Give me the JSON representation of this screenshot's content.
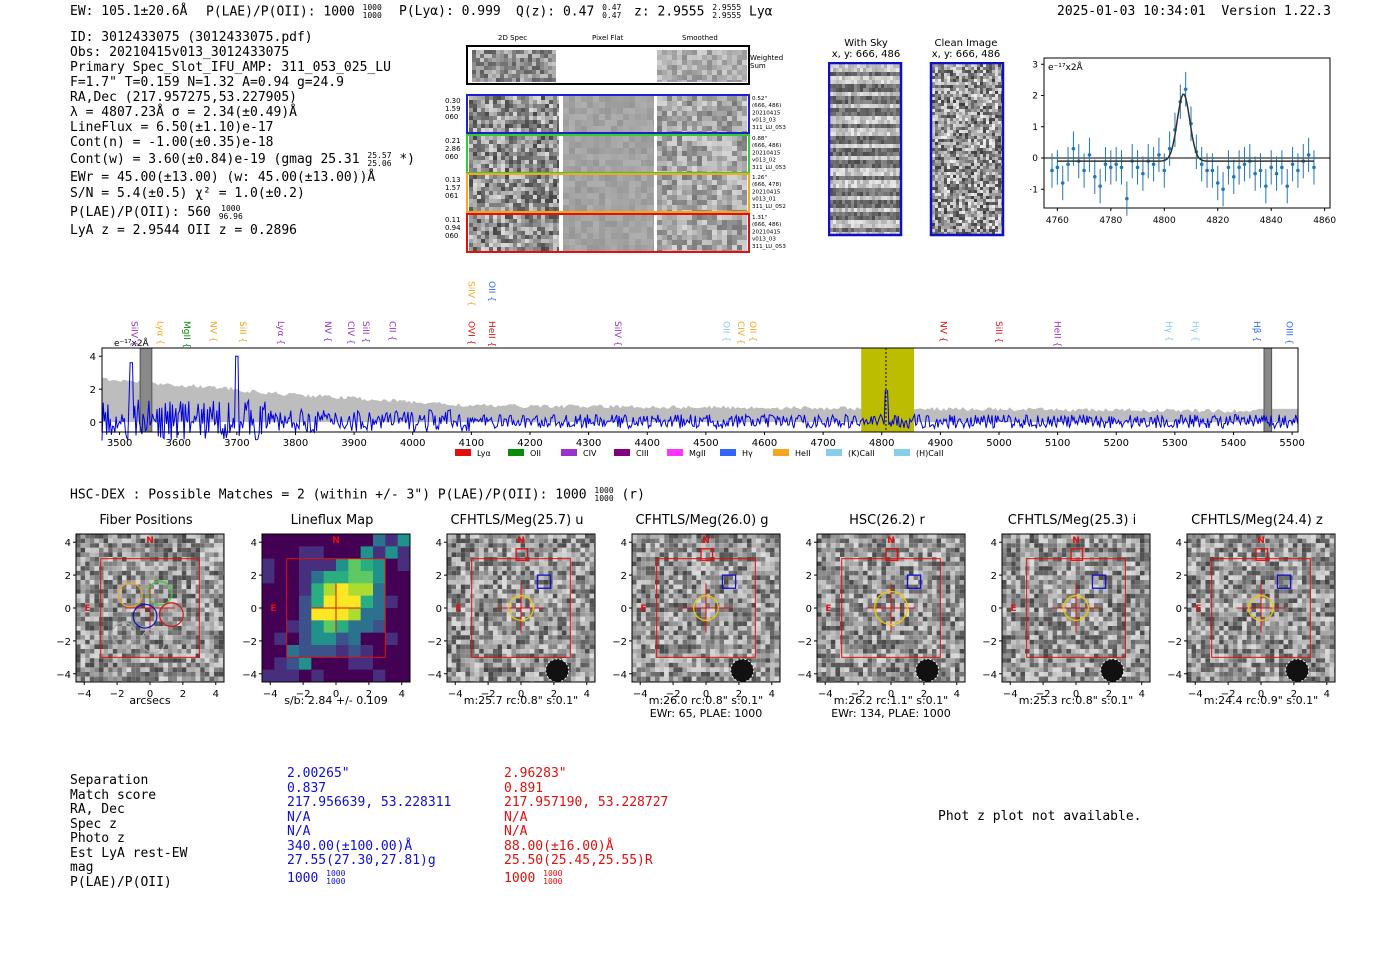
{
  "header": {
    "ew": "EW: 105.1±20.6Å",
    "plae_label": "P(LAE)/P(OII): 1000",
    "plae_up": "1000",
    "plae_lo": "1000",
    "plya": "P(Lyα): 0.999",
    "qz_label": "Q(z): 0.47",
    "qz_up": "0.47",
    "qz_lo": "0.47",
    "z_label": "z: 2.9555",
    "z_up": "2.9555",
    "z_lo": "2.9555",
    "line": "Lyα",
    "datetime": "2025-01-03 10:34:01",
    "version": "Version 1.22.3"
  },
  "info": {
    "id": "ID: 3012433075 (3012433075.pdf)",
    "obs": "Obs: 20210415v013_3012433075",
    "primary": "Primary Spec_Slot_IFU_AMP: 311_053_025_LU",
    "fparams": "F=1.7\"  T=0.159  N=1.32  A=0.94  g=24.9",
    "radec": "RA,Dec (217.957275,53.227905)",
    "lambda": "λ = 4807.23Å  σ = 2.34(±0.49)Å",
    "lineflux": "LineFlux = 6.50(±1.10)e-17",
    "contn": "Cont(n) = -1.00(±0.35)e-18",
    "contw": "Cont(w) = 3.60(±0.84)e-19 (gmag 25.31",
    "contw_up": "25.57",
    "contw_lo": "25.06",
    "contw_end": "*)",
    "ewr": "EWr = 45.00(±13.00) (w: 45.00(±13.00))Å",
    "sn": "S/N = 5.4(±0.5)  χ² = 1.0(±0.2)",
    "plae": "P(LAE)/P(OII): 560",
    "plae_up": "1000",
    "plae_lo": "96.96",
    "lyaz": "LyA z = 2.9544  OII z = 0.2896"
  },
  "spec2d": {
    "col_labels": [
      "2D Spec",
      "Pixel Flat",
      "Smoothed"
    ],
    "weighted_sum": "Weighted Sum",
    "rows": [
      {
        "left": [
          "0.30",
          "1.59",
          "060"
        ],
        "right": [
          "0.52\"",
          "(666, 486)",
          "20210415",
          "v013_03",
          "311_LU_053"
        ],
        "color": "#1f1fd0"
      },
      {
        "left": [
          "0.21",
          "2.86",
          "060"
        ],
        "right": [
          "0.88\"",
          "(666, 486)",
          "20210415",
          "v013_02",
          "311_LU_053"
        ],
        "color": "#33cc33"
      },
      {
        "left": [
          "0.13",
          "1.57",
          "061"
        ],
        "right": [
          "1.26\"",
          "(666, 478)",
          "20210415",
          "v013_01",
          "311_LU_052"
        ],
        "color": "#f5a623"
      },
      {
        "left": [
          "0.11",
          "0.94",
          "060"
        ],
        "right": [
          "1.31\"",
          "(666, 486)",
          "20210415",
          "v013_03",
          "311_LU_053"
        ],
        "color": "#e01010"
      }
    ]
  },
  "skypanels": {
    "with_sky": "With Sky",
    "with_sky_xy": "x, y: 666, 486",
    "clean": "Clean Image",
    "clean_xy": "x, y: 666, 486"
  },
  "zoom_chart": {
    "unit": "e⁻¹⁷x2Å",
    "ytick_labels": [
      "3",
      "2",
      "1",
      "0",
      "−1"
    ],
    "xtick_labels": [
      "4760",
      "4780",
      "4800",
      "4820",
      "4840",
      "4860"
    ]
  },
  "full_spec": {
    "unit": "e⁻¹⁷x2Å",
    "ytick_labels": [
      "4",
      "2",
      "0"
    ],
    "xtick_labels": [
      "3500",
      "3600",
      "3700",
      "3800",
      "3900",
      "4000",
      "4100",
      "4200",
      "4300",
      "4400",
      "4500",
      "4600",
      "4700",
      "4800",
      "4900",
      "5000",
      "5100",
      "5200",
      "5300",
      "5400",
      "5500"
    ],
    "line_labels": [
      {
        "t": "SiIV",
        "c": "#9933cc",
        "x": 3520,
        "row": 0
      },
      {
        "t": "Lyα",
        "c": "#f5a623",
        "x": 3565,
        "row": 0
      },
      {
        "t": "MgII",
        "c": "#0a8a0a",
        "x": 3610,
        "row": 0
      },
      {
        "t": "NV",
        "c": "#f5a623",
        "x": 3655,
        "row": 0
      },
      {
        "t": "SiII",
        "c": "#f5a623",
        "x": 3705,
        "row": 0
      },
      {
        "t": "Lyα",
        "c": "#9933cc",
        "x": 3770,
        "row": 0
      },
      {
        "t": "NV",
        "c": "#9933cc",
        "x": 3850,
        "row": 0
      },
      {
        "t": "CIV",
        "c": "#9933cc",
        "x": 3890,
        "row": 0
      },
      {
        "t": "SiII",
        "c": "#9933cc",
        "x": 3915,
        "row": 0
      },
      {
        "t": "CII",
        "c": "#9933cc",
        "x": 3960,
        "row": 0
      },
      {
        "t": "OVI",
        "c": "#e01010",
        "x": 4095,
        "row": 0
      },
      {
        "t": "SiIV",
        "c": "#f5a623",
        "x": 4095,
        "row": 1
      },
      {
        "t": "HeII",
        "c": "#e01010",
        "x": 4130,
        "row": 0
      },
      {
        "t": "OII",
        "c": "#3366ff",
        "x": 4130,
        "row": 1
      },
      {
        "t": "SiIV",
        "c": "#9933cc",
        "x": 4345,
        "row": 0
      },
      {
        "t": "OII",
        "c": "#87ceeb",
        "x": 4530,
        "row": 0
      },
      {
        "t": "CIV",
        "c": "#f5a623",
        "x": 4555,
        "row": 0
      },
      {
        "t": "OII",
        "c": "#f5a623",
        "x": 4575,
        "row": 0
      },
      {
        "t": "NV",
        "c": "#e01010",
        "x": 4900,
        "row": 0
      },
      {
        "t": "SiII",
        "c": "#e01010",
        "x": 4995,
        "row": 0
      },
      {
        "t": "HeII",
        "c": "#9933cc",
        "x": 5095,
        "row": 0
      },
      {
        "t": "Hγ",
        "c": "#87ceeb",
        "x": 5285,
        "row": 0
      },
      {
        "t": "Hγ",
        "c": "#87ceeb",
        "x": 5330,
        "row": 0
      },
      {
        "t": "Hβ",
        "c": "#3366ff",
        "x": 5435,
        "row": 0
      },
      {
        "t": "OIII",
        "c": "#3366ff",
        "x": 5490,
        "row": 0
      }
    ],
    "legend": [
      {
        "t": "Lyα",
        "c": "#e01010"
      },
      {
        "t": "OII",
        "c": "#0a8a0a"
      },
      {
        "t": "CIV",
        "c": "#9933cc"
      },
      {
        "t": "CIII",
        "c": "#800080"
      },
      {
        "t": "MgII",
        "c": "#ff33ff"
      },
      {
        "t": "Hγ",
        "c": "#3366ff"
      },
      {
        "t": "HeII",
        "c": "#f5a623"
      },
      {
        "t": "(K)CaII",
        "c": "#87ceeb"
      },
      {
        "t": "(H)CaII",
        "c": "#87ceeb"
      }
    ]
  },
  "hsc": {
    "label": "HSC-DEX : Possible Matches = 2 (within +/- 3\")  P(LAE)/P(OII): 1000",
    "up": "1000",
    "lo": "1000",
    "end": "(r)"
  },
  "cutouts": [
    {
      "title": "Fiber Positions",
      "cap1": "arcsecs",
      "cap2": "",
      "kind": "fiber"
    },
    {
      "title": "Lineflux Map",
      "cap1": "s/b: 2.84 +/- 0.109",
      "cap2": "",
      "kind": "flux"
    },
    {
      "title": "CFHTLS/Meg(25.7) u",
      "cap1": "m:25.7 rc:0.8\"  s:0.1\"",
      "cap2": "",
      "kind": "img"
    },
    {
      "title": "CFHTLS/Meg(26.0) g",
      "cap1": "m:26.0 rc:0.8\"  s:0.1\"",
      "cap2": "EWr: 65, PLAE: 1000",
      "kind": "img"
    },
    {
      "title": "HSC(26.2) r",
      "cap1": "m:26.2 rc:1.1\"  s:0.1\"",
      "cap2": "EWr: 134, PLAE: 1000",
      "kind": "img"
    },
    {
      "title": "CFHTLS/Meg(25.3) i",
      "cap1": "m:25.3 rc:0.8\"  s:0.1\"",
      "cap2": "",
      "kind": "img"
    },
    {
      "title": "CFHTLS/Meg(24.4) z",
      "cap1": "m:24.4 rc:0.9\"  s:0.1\"",
      "cap2": "",
      "kind": "img"
    }
  ],
  "cutout_axis": {
    "ytick_labels": [
      "4",
      "2",
      "0",
      "−2",
      "−4"
    ],
    "xtick_labels": [
      "−4",
      "−2",
      "0",
      "2",
      "4"
    ],
    "north": "N",
    "east": "E"
  },
  "match_table": {
    "labels": [
      "Separation",
      "Match score",
      "RA, Dec",
      "Spec z",
      "Photo z",
      "Est LyA rest-EW",
      "mag",
      "P(LAE)/P(OII)"
    ],
    "col1": [
      "2.00265\"",
      "0.837",
      "217.956639, 53.228311",
      "N/A",
      "N/A",
      "340.00(±100.00)Å",
      "27.55(27.30,27.81)g",
      "1000"
    ],
    "col1_plae_up": "1000",
    "col1_plae_lo": "1000",
    "col2": [
      "2.96283\"",
      "0.891",
      "217.957190, 53.228727",
      "N/A",
      "N/A",
      "88.00(±16.00)Å",
      "25.50(25.45,25.55)R",
      "1000"
    ],
    "col2_plae_up": "1000",
    "col2_plae_lo": "1000",
    "photz_note": "Phot z plot not available."
  },
  "chart_data": [
    {
      "type": "line",
      "title": "",
      "xlabel": "",
      "ylabel": "e-17x2Å",
      "xlim": [
        4755,
        4862
      ],
      "ylim": [
        -1.6,
        3.2
      ],
      "x": [
        4758,
        4760,
        4762,
        4764,
        4766,
        4768,
        4770,
        4772,
        4774,
        4776,
        4778,
        4780,
        4782,
        4784,
        4786,
        4788,
        4790,
        4792,
        4794,
        4796,
        4798,
        4800,
        4802,
        4804,
        4806,
        4808,
        4810,
        4812,
        4814,
        4816,
        4818,
        4820,
        4822,
        4824,
        4826,
        4828,
        4830,
        4832,
        4834,
        4836,
        4838,
        4840,
        4842,
        4844,
        4846,
        4848,
        4850,
        4852,
        4854,
        4856
      ],
      "values": [
        -0.4,
        -0.3,
        -0.8,
        -0.2,
        0.3,
        -0.1,
        -0.4,
        0.1,
        -0.6,
        -0.9,
        -0.2,
        -0.3,
        -0.2,
        -0.3,
        -1.3,
        -0.1,
        -0.3,
        -0.5,
        -0.1,
        -0.2,
        0.1,
        -0.4,
        0.3,
        0.9,
        1.8,
        2.2,
        1.1,
        0.2,
        -0.2,
        -0.4,
        -0.4,
        -0.8,
        -1.0,
        -0.3,
        -0.6,
        -0.3,
        -0.2,
        -0.1,
        -0.5,
        -0.4,
        -0.9,
        -0.3,
        -0.5,
        -0.3,
        -0.9,
        -0.2,
        -0.4,
        -0.1,
        0.1,
        -0.3
      ],
      "fit": {
        "center": 4807.2,
        "sigma": 2.34,
        "amp": 2.15,
        "baseline": -0.1
      },
      "errors_approx": 0.55
    },
    {
      "type": "line",
      "title": "",
      "ylabel": "e-17x2Å",
      "xlim": [
        3470,
        5510
      ],
      "ylim": [
        -0.6,
        4.5
      ],
      "series": [
        {
          "name": "flux",
          "color": "#0000dd"
        },
        {
          "name": "error",
          "color": "#b0b0b0"
        }
      ],
      "highlight_range": [
        4765,
        4855
      ],
      "line_center": 4807.2,
      "masked_bands": [
        [
          3535,
          3555
        ],
        [
          5452,
          5465
        ]
      ]
    }
  ]
}
